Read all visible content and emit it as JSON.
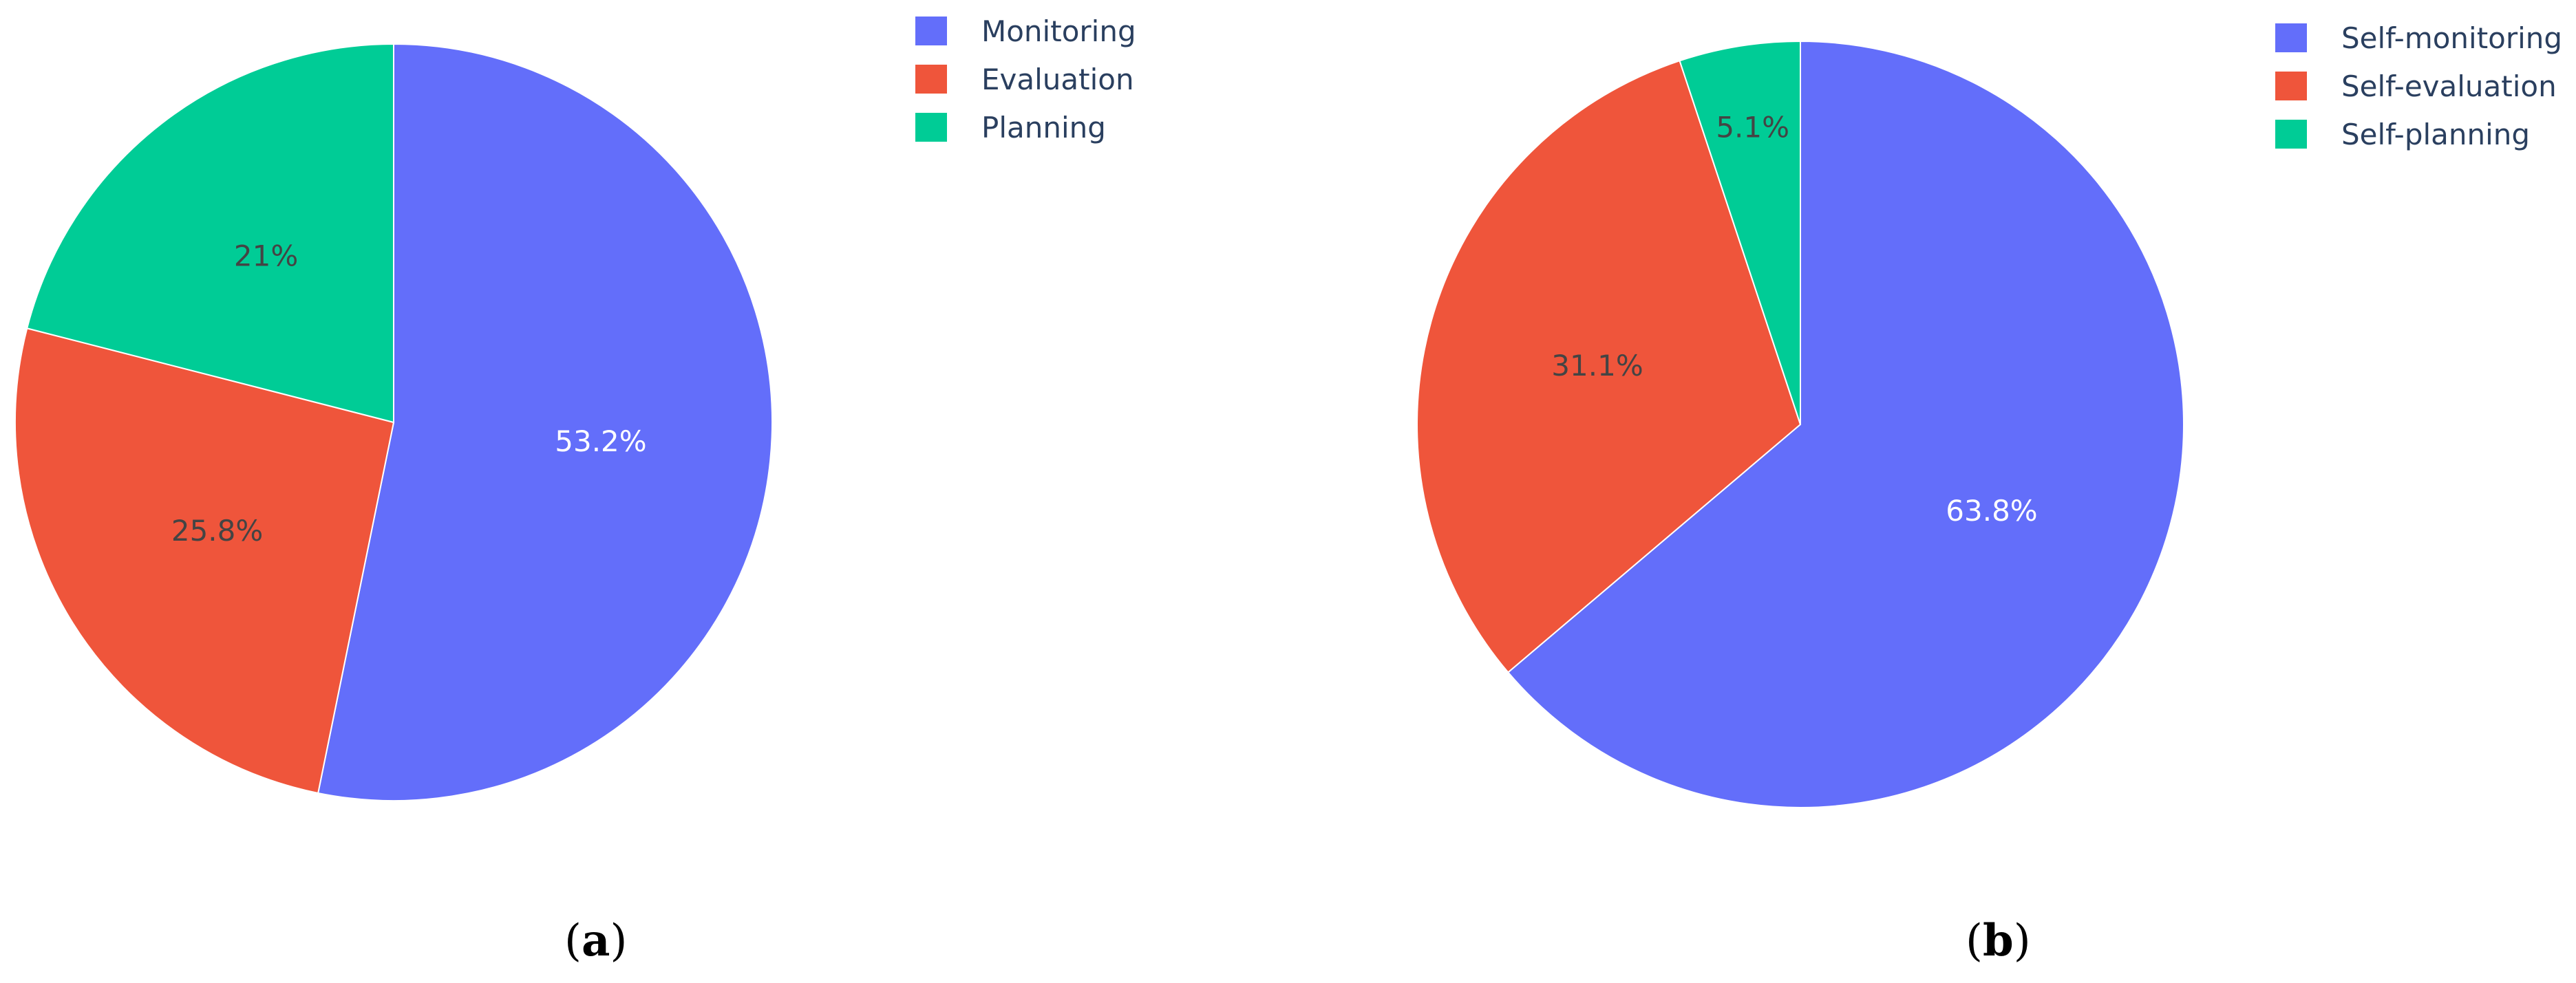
{
  "chart_data": [
    {
      "type": "pie",
      "caption": "(a)",
      "categories": [
        "Monitoring",
        "Evaluation",
        "Planning"
      ],
      "values": [
        53.2,
        25.8,
        21.0
      ],
      "labels": [
        "53.2%",
        "25.8%",
        "21%"
      ],
      "colors": [
        "#636efa",
        "#ef553b",
        "#00cc96"
      ],
      "legend_position": "top-right"
    },
    {
      "type": "pie",
      "caption": "(b)",
      "categories": [
        "Self-monitoring",
        "Self-evaluation",
        "Self-planning"
      ],
      "values": [
        63.8,
        31.1,
        5.1
      ],
      "labels": [
        "63.8%",
        "31.1%",
        "5.1%"
      ],
      "colors": [
        "#636efa",
        "#ef553b",
        "#00cc96"
      ],
      "legend_position": "top-right"
    }
  ]
}
